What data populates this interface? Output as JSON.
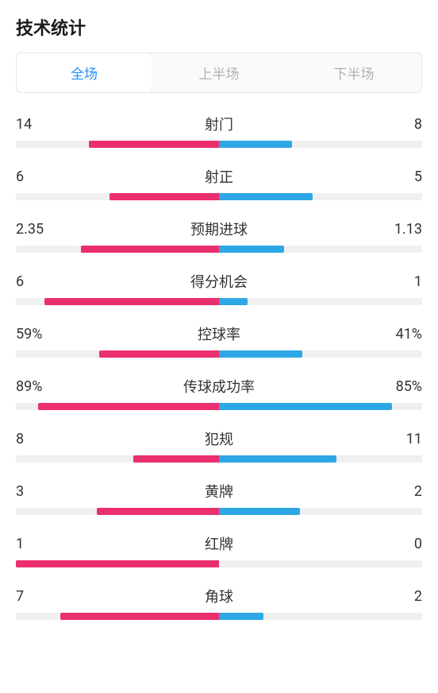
{
  "title": "技术统计",
  "colors": {
    "left": "#eb2f6e",
    "right": "#2ea7e6",
    "track": "#f0f0f0",
    "tabActive": "#1e90ff",
    "tabInactive": "#b0b0b0"
  },
  "tabs": [
    {
      "label": "全场",
      "active": true
    },
    {
      "label": "上半场",
      "active": false
    },
    {
      "label": "下半场",
      "active": false
    }
  ],
  "stats": [
    {
      "name": "射门",
      "leftDisplay": "14",
      "rightDisplay": "8",
      "leftPct": 32,
      "rightPct": 18
    },
    {
      "name": "射正",
      "leftDisplay": "6",
      "rightDisplay": "5",
      "leftPct": 27,
      "rightPct": 23
    },
    {
      "name": "预期进球",
      "leftDisplay": "2.35",
      "rightDisplay": "1.13",
      "leftPct": 34,
      "rightPct": 16
    },
    {
      "name": "得分机会",
      "leftDisplay": "6",
      "rightDisplay": "1",
      "leftPct": 43,
      "rightPct": 7
    },
    {
      "name": "控球率",
      "leftDisplay": "59%",
      "rightDisplay": "41%",
      "leftPct": 29.5,
      "rightPct": 20.5
    },
    {
      "name": "传球成功率",
      "leftDisplay": "89%",
      "rightDisplay": "85%",
      "leftPct": 44.5,
      "rightPct": 42.5
    },
    {
      "name": "犯规",
      "leftDisplay": "8",
      "rightDisplay": "11",
      "leftPct": 21,
      "rightPct": 29
    },
    {
      "name": "黄牌",
      "leftDisplay": "3",
      "rightDisplay": "2",
      "leftPct": 30,
      "rightPct": 20
    },
    {
      "name": "红牌",
      "leftDisplay": "1",
      "rightDisplay": "0",
      "leftPct": 50,
      "rightPct": 0
    },
    {
      "name": "角球",
      "leftDisplay": "7",
      "rightDisplay": "2",
      "leftPct": 39,
      "rightPct": 11
    }
  ]
}
